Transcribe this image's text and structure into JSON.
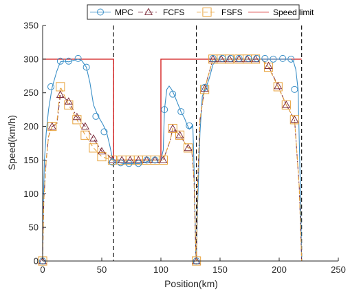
{
  "chart_data": {
    "type": "line",
    "xlabel": "Position(km)",
    "ylabel": "Speed(km/h)",
    "xlim": [
      0,
      250
    ],
    "ylim": [
      0,
      350
    ],
    "xticks": [
      0,
      50,
      100,
      150,
      200,
      250
    ],
    "yticks": [
      0,
      50,
      100,
      150,
      200,
      250,
      300,
      350
    ],
    "grid": false,
    "legend_position": "top",
    "vertical_lines": [
      60,
      130,
      219
    ],
    "series": [
      {
        "name": "MPC",
        "color": "#3a8fc7",
        "marker": "circle",
        "line_style": "solid",
        "x": [
          0,
          0.5,
          1.5,
          3,
          5,
          8,
          12,
          15,
          18,
          22,
          26,
          30,
          33,
          37,
          40,
          43,
          47,
          51,
          54,
          57,
          59,
          60,
          62,
          65,
          68,
          73,
          78,
          82,
          87,
          92,
          97,
          100,
          102,
          103,
          105,
          107,
          109,
          111,
          114,
          117,
          120,
          122,
          124,
          126,
          127,
          128,
          129,
          129.5,
          130,
          131,
          133,
          135,
          138,
          141,
          144,
          148,
          155,
          165,
          175,
          185,
          195,
          205,
          210,
          212,
          214,
          216,
          218,
          219
        ],
        "y": [
          0,
          80,
          150,
          190,
          225,
          258,
          282,
          296,
          297,
          296,
          298,
          300,
          298,
          288,
          265,
          232,
          215,
          203,
          192,
          170,
          152,
          148,
          146,
          146,
          145,
          145,
          145,
          145,
          147,
          150,
          150,
          150,
          165,
          225,
          255,
          260,
          255,
          248,
          235,
          222,
          212,
          203,
          196,
          200,
          202,
          140,
          60,
          10,
          0,
          80,
          190,
          245,
          257,
          272,
          292,
          300,
          300,
          300,
          300,
          300,
          300,
          300,
          300,
          297,
          285,
          255,
          100,
          0
        ],
        "marker_x": [
          0,
          7,
          15,
          22,
          30,
          37,
          45,
          52,
          59,
          66,
          73,
          81,
          88,
          95,
          103,
          110,
          117,
          124,
          130,
          137,
          144,
          152,
          159,
          166,
          174,
          181,
          188,
          195,
          203,
          210,
          213
        ],
        "marker_y": [
          0,
          259,
          297,
          297,
          301,
          288,
          215,
          192,
          147,
          146,
          145,
          145,
          150,
          150,
          225,
          248,
          222,
          201,
          0,
          258,
          301,
          301,
          301,
          301,
          301,
          301,
          301,
          300,
          301,
          300,
          255
        ]
      },
      {
        "name": "FCFS",
        "color": "#7e2f3e",
        "marker": "triangle",
        "line_style": "dashdot",
        "x": [
          0,
          1,
          3,
          5,
          8,
          12,
          15,
          22,
          29,
          36,
          43,
          50,
          55,
          59,
          60,
          67,
          74,
          81,
          88,
          95,
          102,
          103,
          108,
          110,
          116,
          123,
          126,
          128,
          129.5,
          130,
          131,
          133,
          137,
          140,
          144,
          151,
          158,
          166,
          173,
          180,
          185,
          191,
          199,
          206,
          213,
          217,
          219
        ],
        "y": [
          0,
          90,
          150,
          185,
          200,
          203,
          247,
          237,
          214,
          200,
          182,
          163,
          158,
          150,
          150,
          150,
          150,
          150,
          150,
          150,
          150,
          155,
          180,
          197,
          187,
          168,
          168,
          120,
          15,
          0,
          110,
          210,
          256,
          275,
          300,
          300,
          300,
          300,
          300,
          300,
          300,
          290,
          260,
          232,
          210,
          110,
          0
        ],
        "marker_x": [
          0,
          8,
          15,
          22,
          29,
          36,
          43,
          50,
          59,
          67,
          74,
          81,
          88,
          95,
          102,
          110,
          116,
          123,
          130,
          137,
          144,
          151,
          158,
          166,
          173,
          180,
          191,
          199,
          206,
          213
        ],
        "marker_y": [
          0,
          200,
          247,
          237,
          214,
          200,
          182,
          163,
          150,
          150,
          150,
          150,
          150,
          150,
          150,
          197,
          187,
          168,
          0,
          256,
          300,
          300,
          300,
          300,
          300,
          300,
          290,
          260,
          232,
          210
        ]
      },
      {
        "name": "FSFS",
        "color": "#e8a33c",
        "marker": "square",
        "line_style": "dashed",
        "x": [
          0,
          1,
          3,
          5,
          8,
          12,
          15,
          22,
          29,
          36,
          43,
          50,
          55,
          59,
          60,
          67,
          74,
          81,
          88,
          95,
          102,
          103,
          108,
          110,
          116,
          123,
          126,
          128,
          129.5,
          130,
          131,
          133,
          137,
          140,
          144,
          151,
          158,
          166,
          173,
          180,
          185,
          191,
          199,
          206,
          213,
          217,
          219
        ],
        "y": [
          0,
          90,
          150,
          185,
          200,
          205,
          259,
          232,
          210,
          187,
          168,
          155,
          152,
          150,
          150,
          150,
          150,
          150,
          150,
          150,
          150,
          155,
          180,
          197,
          187,
          168,
          168,
          120,
          15,
          0,
          110,
          210,
          255,
          275,
          300,
          300,
          300,
          300,
          300,
          300,
          300,
          288,
          259,
          232,
          210,
          110,
          0
        ],
        "marker_x": [
          0,
          8,
          15,
          22,
          29,
          36,
          43,
          50,
          59,
          67,
          74,
          81,
          88,
          95,
          102,
          110,
          116,
          123,
          130,
          137,
          144,
          151,
          158,
          166,
          173,
          180,
          191,
          199,
          206,
          213
        ],
        "marker_y": [
          0,
          200,
          259,
          232,
          210,
          187,
          168,
          155,
          150,
          150,
          150,
          150,
          150,
          150,
          150,
          197,
          187,
          168,
          0,
          255,
          300,
          300,
          300,
          300,
          300,
          300,
          288,
          259,
          232,
          210
        ]
      },
      {
        "name": "Speed limit",
        "color": "#d42020",
        "marker": "none",
        "line_style": "solid",
        "x": [
          0,
          60,
          60,
          100,
          100,
          219
        ],
        "y": [
          300,
          300,
          150,
          150,
          300,
          300
        ]
      }
    ]
  }
}
